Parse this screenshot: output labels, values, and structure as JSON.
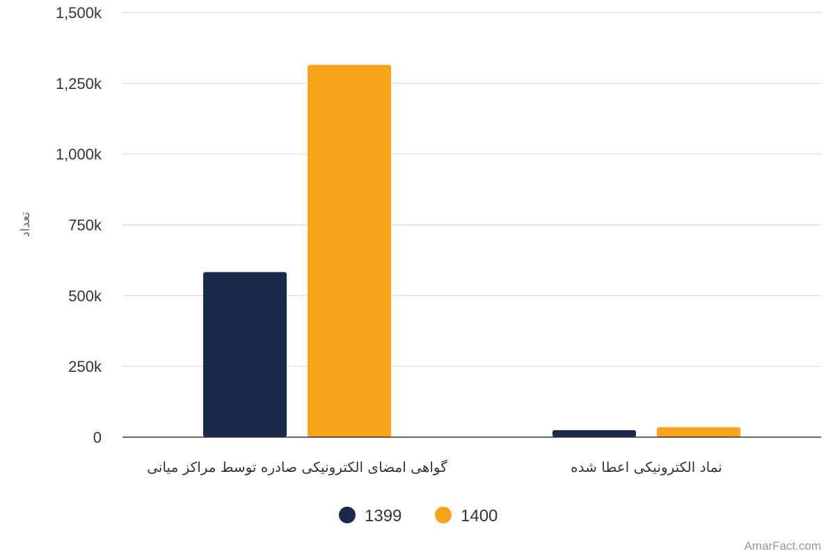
{
  "chart_data": {
    "type": "bar",
    "categories": [
      "گواهی امضای الکترونیکی صادره توسط مراکز میانی",
      "نماد الکترونیکی اعطا شده"
    ],
    "series": [
      {
        "name": "1399",
        "color": "#1b2a4a",
        "values": [
          583000,
          25000
        ]
      },
      {
        "name": "1400",
        "color": "#f9a31a",
        "values": [
          1315000,
          35000
        ]
      }
    ],
    "ylabel": "تعداد",
    "ylim": [
      0,
      1500000
    ],
    "yticks": [
      0,
      250000,
      500000,
      750000,
      1000000,
      1250000,
      1500000
    ],
    "ytick_labels": [
      "0",
      "250k",
      "500k",
      "750k",
      "1,000k",
      "1,250k",
      "1,500k"
    ],
    "grid": true,
    "legend_position": "bottom-center"
  },
  "credit": "AmarFact.com"
}
